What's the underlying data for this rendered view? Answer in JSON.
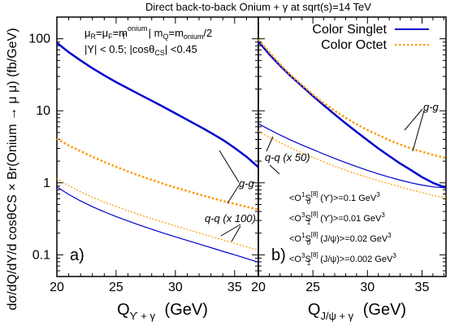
{
  "chart_data": {
    "title": "Direct back-to-back Onium + γ at sqrt(s)=14 TeV",
    "ylabel": "dσ/dQ/dY/d cosθCS × Br(Onium → μ μ) (fb/GeV)",
    "yscale": "log",
    "legend": [
      {
        "name": "Color Singlet",
        "color": "#0000cc",
        "style": "solid"
      },
      {
        "name": "Color Octet",
        "color": "#ff9900",
        "style": "dotted"
      }
    ],
    "text_lines": {
      "scale_parts": [
        "μ",
        "R",
        "=μ",
        "F",
        "=m",
        "onium",
        "T",
        " | m",
        "Q",
        "=m",
        "onium",
        "/2"
      ],
      "cuts_parts": [
        "|Y| < 0.5; |cosθ",
        "CS",
        "| <0.45"
      ]
    },
    "ldme_lines": [
      {
        "parts": [
          "<O",
          "1",
          "S",
          "[8]",
          "0",
          " (ϒ)>=0.1 GeV",
          "3"
        ]
      },
      {
        "parts": [
          "<O",
          "3",
          "S",
          "[8]",
          "1",
          " (ϒ)>=0.01 GeV",
          "3"
        ]
      },
      {
        "parts": [
          "<O",
          "1",
          "S",
          "[8]",
          "0",
          " (J/ψ)>=0.02 GeV",
          "3"
        ]
      },
      {
        "parts": [
          "<O",
          "3",
          "S",
          "[8]",
          "1",
          " (J/ψ)>=0.002 GeV",
          "3"
        ]
      }
    ],
    "panels": [
      {
        "label": "a)",
        "xlabel_main": "Q",
        "xlabel_sub": "ϒ + γ",
        "xlabel_unit": "(GeV)",
        "xlim": [
          20,
          37
        ],
        "xticks": [
          20,
          25,
          30,
          35
        ],
        "ylim": [
          0.05,
          200
        ],
        "yticks": [
          0.1,
          1,
          10,
          100
        ],
        "ytick_labels": [
          "0.1",
          "1",
          "10",
          "100"
        ],
        "annotations": [
          "g-g",
          "q-q (x 100)"
        ],
        "series": [
          {
            "group": "g-g",
            "color": "#0000cc",
            "dash": "solid",
            "width": 2.5,
            "x": [
              20,
              21,
              22,
              23,
              24,
              25,
              26,
              27,
              28,
              29,
              30,
              31,
              32,
              33,
              34,
              35,
              36,
              37
            ],
            "y": [
              88,
              65,
              50,
              39,
              31,
              25,
              20.5,
              16.8,
              13.8,
              11.3,
              9.2,
              7.5,
              6.1,
              4.95,
              3.95,
              3.05,
              2.3,
              1.65
            ]
          },
          {
            "group": "g-g",
            "color": "#ff9900",
            "dash": "dotted",
            "width": 2.5,
            "x": [
              20,
              21,
              22,
              23,
              24,
              25,
              26,
              27,
              28,
              29,
              30,
              31,
              32,
              33,
              34,
              35,
              36,
              37
            ],
            "y": [
              4.1,
              3.3,
              2.75,
              2.3,
              1.95,
              1.67,
              1.44,
              1.25,
              1.1,
              0.97,
              0.86,
              0.77,
              0.69,
              0.62,
              0.56,
              0.51,
              0.465,
              0.425
            ]
          },
          {
            "group": "q-q",
            "color": "#0000cc",
            "dash": "solid",
            "width": 1.2,
            "x": [
              20,
              21,
              22,
              23,
              24,
              25,
              26,
              27,
              28,
              29,
              30,
              31,
              32,
              33,
              34,
              35,
              36,
              37
            ],
            "y": [
              0.88,
              0.69,
              0.56,
              0.465,
              0.395,
              0.34,
              0.295,
              0.258,
              0.227,
              0.2,
              0.178,
              0.158,
              0.141,
              0.126,
              0.112,
              0.1,
              0.089,
              0.079
            ]
          },
          {
            "group": "q-q",
            "color": "#ff9900",
            "dash": "dotted",
            "width": 1.2,
            "x": [
              20,
              21,
              22,
              23,
              24,
              25,
              26,
              27,
              28,
              29,
              30,
              31,
              32,
              33,
              34,
              35,
              36,
              37
            ],
            "y": [
              1.15,
              0.91,
              0.75,
              0.63,
              0.54,
              0.47,
              0.41,
              0.36,
              0.318,
              0.283,
              0.252,
              0.225,
              0.201,
              0.18,
              0.161,
              0.144,
              0.129,
              0.116
            ]
          }
        ]
      },
      {
        "label": "b)",
        "xlabel_main": "Q",
        "xlabel_sub": "J/ψ + γ",
        "xlabel_unit": "(GeV)",
        "xlim": [
          20,
          37.2
        ],
        "xticks": [
          20,
          25,
          30,
          35
        ],
        "ylim": [
          0.05,
          200
        ],
        "annotations": [
          "g-g",
          "q-q (x 50)"
        ],
        "series": [
          {
            "group": "g-g",
            "color": "#0000cc",
            "dash": "solid",
            "width": 2.5,
            "x": [
              20,
              21,
              22,
              23,
              24,
              25,
              26,
              27,
              28,
              29,
              30,
              31,
              32,
              33,
              34,
              35,
              36,
              37.2
            ],
            "y": [
              92,
              61,
              42,
              30,
              22,
              16,
              11.9,
              8.9,
              6.7,
              5.1,
              3.9,
              3.0,
              2.35,
              1.85,
              1.5,
              1.2,
              1.0,
              0.85
            ]
          },
          {
            "group": "g-g",
            "color": "#ff9900",
            "dash": "dotted",
            "width": 2.5,
            "x": [
              20,
              21,
              22,
              23,
              24,
              25,
              26,
              27,
              28,
              29,
              30,
              31,
              32,
              33,
              34,
              35,
              36,
              37.2
            ],
            "y": [
              98,
              65,
              44,
              31,
              22.7,
              16.8,
              12.8,
              10.0,
              8.0,
              6.5,
              5.4,
              4.6,
              3.9,
              3.4,
              3.0,
              2.7,
              2.45,
              2.2
            ]
          },
          {
            "group": "q-q",
            "color": "#0000cc",
            "dash": "solid",
            "width": 1.2,
            "x": [
              20,
              21,
              22,
              23,
              24,
              25,
              26,
              27,
              28,
              29,
              30,
              31,
              32,
              33,
              34,
              35,
              36,
              37.2
            ],
            "y": [
              6.6,
              5.5,
              4.6,
              3.9,
              3.35,
              2.9,
              2.5,
              2.18,
              1.91,
              1.68,
              1.49,
              1.33,
              1.2,
              1.09,
              1.0,
              0.93,
              0.88,
              0.85
            ]
          },
          {
            "group": "q-q",
            "color": "#ff9900",
            "dash": "dotted",
            "width": 1.2,
            "x": [
              20,
              21,
              22,
              23,
              24,
              25,
              26,
              27,
              28,
              29,
              30,
              31,
              32,
              33,
              34,
              35,
              36,
              37.2
            ],
            "y": [
              5.2,
              4.3,
              3.6,
              3.05,
              2.6,
              2.25,
              1.95,
              1.7,
              1.5,
              1.33,
              1.19,
              1.07,
              0.97,
              0.88,
              0.8,
              0.73,
              0.67,
              0.62
            ]
          }
        ]
      }
    ]
  }
}
